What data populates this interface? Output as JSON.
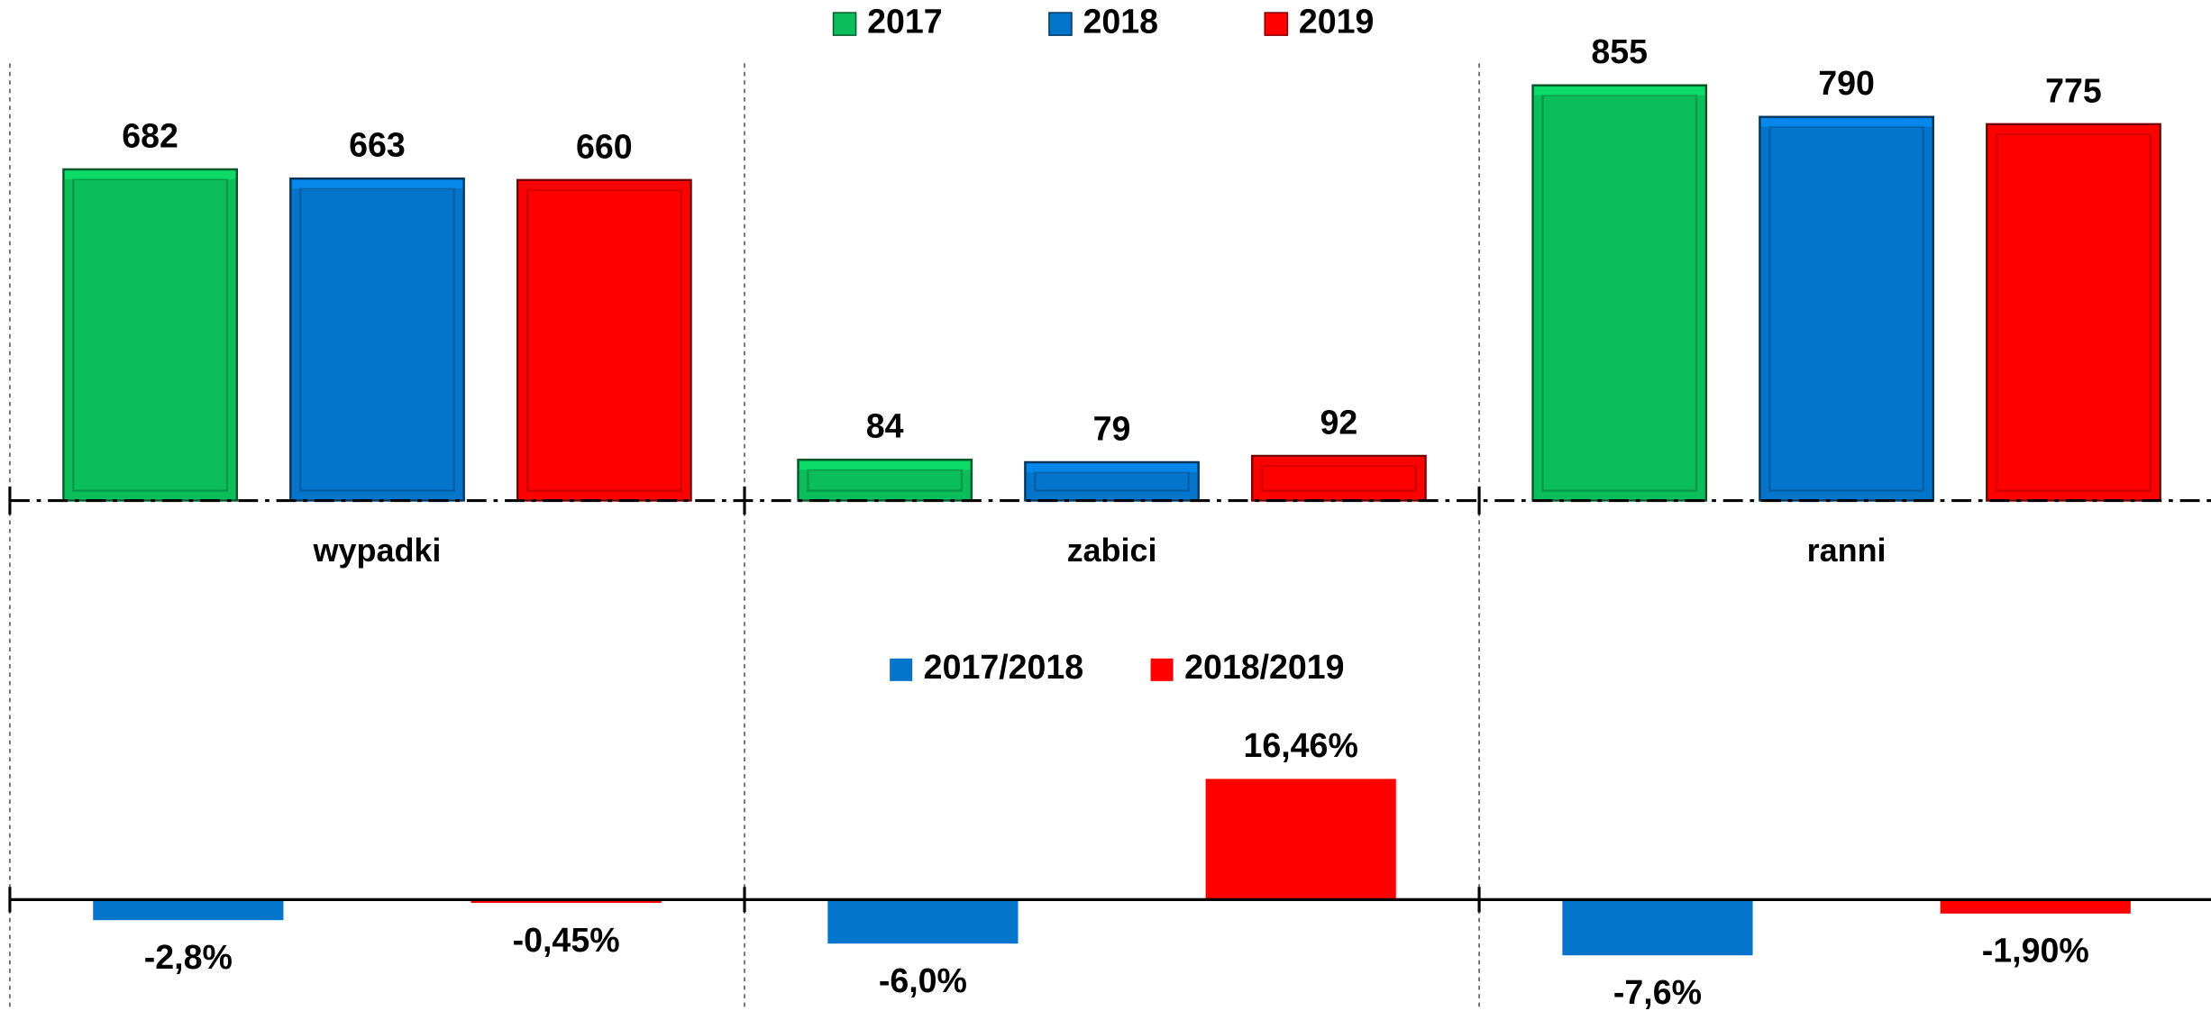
{
  "chart_data": [
    {
      "type": "bar",
      "categories": [
        "wypadki",
        "zabici",
        "ranni"
      ],
      "series": [
        {
          "name": "2017",
          "color": "#0bbe5b",
          "values": [
            682,
            84,
            855
          ]
        },
        {
          "name": "2018",
          "color": "#0575cc",
          "values": [
            663,
            79,
            790
          ]
        },
        {
          "name": "2019",
          "color": "#ff0000",
          "values": [
            660,
            92,
            775
          ]
        }
      ],
      "ylim": [
        0,
        900
      ]
    },
    {
      "type": "bar",
      "categories": [
        null,
        null,
        null
      ],
      "series": [
        {
          "name": "2017/2018",
          "color": "#0575cc",
          "values": [
            -2.8,
            -6.0,
            -7.6
          ],
          "value_labels": [
            "-2,8%",
            "-6,0%",
            "-7,6%"
          ]
        },
        {
          "name": "2018/2019",
          "color": "#ff0000",
          "values": [
            -0.45,
            16.46,
            -1.9
          ],
          "value_labels": [
            "-0,45%",
            "16,46%",
            "-1,90%"
          ]
        }
      ],
      "ylim": [
        -15,
        20
      ]
    }
  ]
}
